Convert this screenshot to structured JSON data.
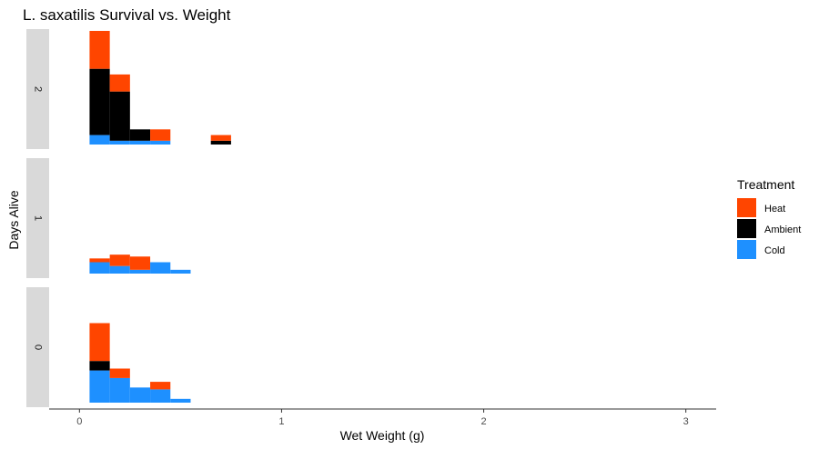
{
  "chart_data": {
    "type": "bar",
    "subtype": "stacked-histogram-faceted",
    "title": "L. saxatilis Survival vs. Weight",
    "xlabel": "Wet Weight (g)",
    "ylabel": "Days Alive",
    "xlim": [
      -0.15,
      3.15
    ],
    "x_ticks": [
      0,
      1,
      2,
      3
    ],
    "x_tick_labels": [
      "0",
      "1",
      "2",
      "3"
    ],
    "bin_width": 0.1,
    "ylim": [
      0,
      6
    ],
    "grid": false,
    "legend": {
      "title": "Treatment",
      "position": "right"
    },
    "series": [
      {
        "name": "Heat",
        "color": "#FF4500"
      },
      {
        "name": "Ambient",
        "color": "#000000"
      },
      {
        "name": "Cold",
        "color": "#1E90FF"
      }
    ],
    "stack_order_bottom_to_top": [
      "Cold",
      "Ambient",
      "Heat"
    ],
    "facets": [
      {
        "label": "2",
        "bins": [
          {
            "x0": 0.05,
            "x1": 0.15,
            "values": {
              "Cold": 0.5,
              "Ambient": 3.5,
              "Heat": 2.0
            }
          },
          {
            "x0": 0.15,
            "x1": 0.25,
            "values": {
              "Cold": 0.2,
              "Ambient": 2.6,
              "Heat": 0.9
            }
          },
          {
            "x0": 0.25,
            "x1": 0.35,
            "values": {
              "Cold": 0.2,
              "Ambient": 0.6,
              "Heat": 0.0
            }
          },
          {
            "x0": 0.35,
            "x1": 0.45,
            "values": {
              "Cold": 0.2,
              "Ambient": 0.0,
              "Heat": 0.6
            }
          },
          {
            "x0": 0.65,
            "x1": 0.75,
            "values": {
              "Cold": 0.0,
              "Ambient": 0.2,
              "Heat": 0.3
            }
          }
        ]
      },
      {
        "label": "1",
        "bins": [
          {
            "x0": 0.05,
            "x1": 0.15,
            "values": {
              "Cold": 0.6,
              "Ambient": 0.0,
              "Heat": 0.2
            }
          },
          {
            "x0": 0.15,
            "x1": 0.25,
            "values": {
              "Cold": 0.4,
              "Ambient": 0.0,
              "Heat": 0.6
            }
          },
          {
            "x0": 0.25,
            "x1": 0.35,
            "values": {
              "Cold": 0.2,
              "Ambient": 0.0,
              "Heat": 0.7
            }
          },
          {
            "x0": 0.35,
            "x1": 0.45,
            "values": {
              "Cold": 0.6,
              "Ambient": 0.0,
              "Heat": 0.0
            }
          },
          {
            "x0": 0.45,
            "x1": 0.55,
            "values": {
              "Cold": 0.2,
              "Ambient": 0.0,
              "Heat": 0.0
            }
          }
        ]
      },
      {
        "label": "0",
        "bins": [
          {
            "x0": 0.05,
            "x1": 0.15,
            "values": {
              "Cold": 1.7,
              "Ambient": 0.5,
              "Heat": 2.0
            }
          },
          {
            "x0": 0.15,
            "x1": 0.25,
            "values": {
              "Cold": 1.3,
              "Ambient": 0.0,
              "Heat": 0.5
            }
          },
          {
            "x0": 0.25,
            "x1": 0.35,
            "values": {
              "Cold": 0.8,
              "Ambient": 0.0,
              "Heat": 0.0
            }
          },
          {
            "x0": 0.35,
            "x1": 0.45,
            "values": {
              "Cold": 0.7,
              "Ambient": 0.0,
              "Heat": 0.4
            }
          },
          {
            "x0": 0.45,
            "x1": 0.55,
            "values": {
              "Cold": 0.2,
              "Ambient": 0.0,
              "Heat": 0.0
            }
          }
        ]
      }
    ]
  }
}
